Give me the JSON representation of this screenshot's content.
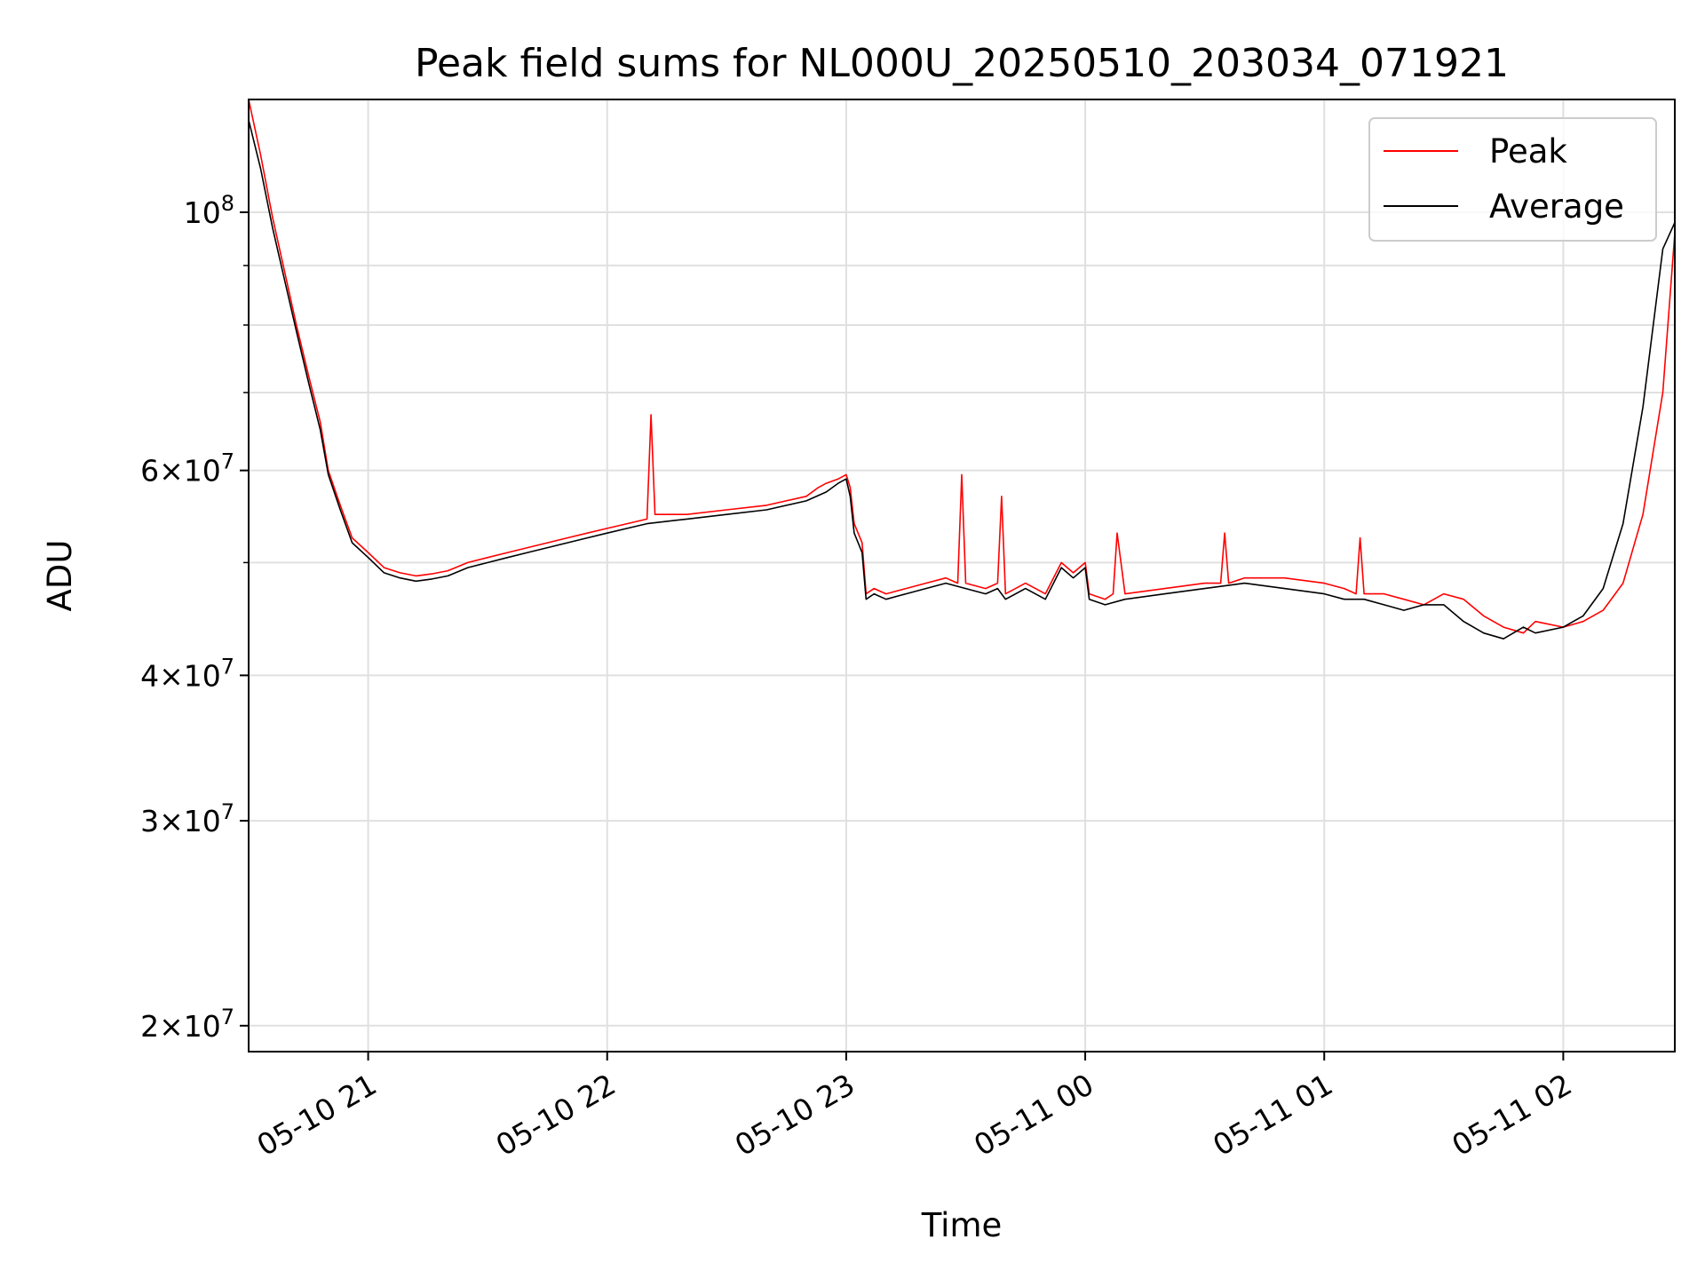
{
  "chart_data": {
    "type": "line",
    "title": "Peak field sums for NL000U_20250510_203034_071921",
    "xlabel": "Time",
    "ylabel": "ADU",
    "yscale": "log",
    "xlim": [
      "2025-05-10 20:30",
      "2025-05-11 02:28"
    ],
    "ylim": [
      19000000,
      125000000
    ],
    "grid": true,
    "legend_position": "top-right",
    "x_ticks": [
      "05-10 21",
      "05-10 22",
      "05-10 23",
      "05-11 00",
      "05-11 01",
      "05-11 02"
    ],
    "y_ticks": [
      {
        "value": 20000000,
        "mantissa": "2",
        "exponent": "7"
      },
      {
        "value": 30000000,
        "mantissa": "3",
        "exponent": "7"
      },
      {
        "value": 40000000,
        "mantissa": "4",
        "exponent": "7"
      },
      {
        "value": 60000000,
        "mantissa": "6",
        "exponent": "7"
      },
      {
        "value": 100000000,
        "mantissa": "",
        "exponent": "8"
      }
    ],
    "y_minor_ticks": [
      50000000,
      70000000,
      80000000,
      90000000
    ],
    "series": [
      {
        "name": "Peak",
        "color": "#ff0000",
        "x": [
          "2025-05-10 20:30",
          "2025-05-10 20:33",
          "2025-05-10 20:36",
          "2025-05-10 20:39",
          "2025-05-10 20:42",
          "2025-05-10 20:45",
          "2025-05-10 20:48",
          "2025-05-10 20:50",
          "2025-05-10 20:53",
          "2025-05-10 20:56",
          "2025-05-10 21:00",
          "2025-05-10 21:04",
          "2025-05-10 21:08",
          "2025-05-10 21:12",
          "2025-05-10 21:16",
          "2025-05-10 21:20",
          "2025-05-10 21:25",
          "2025-05-10 21:30",
          "2025-05-10 21:35",
          "2025-05-10 21:40",
          "2025-05-10 21:45",
          "2025-05-10 21:50",
          "2025-05-10 21:55",
          "2025-05-10 22:00",
          "2025-05-10 22:05",
          "2025-05-10 22:10",
          "2025-05-10 22:11",
          "2025-05-10 22:12",
          "2025-05-10 22:20",
          "2025-05-10 22:30",
          "2025-05-10 22:40",
          "2025-05-10 22:50",
          "2025-05-10 22:53",
          "2025-05-10 22:55",
          "2025-05-10 22:58",
          "2025-05-10 23:00",
          "2025-05-10 23:01",
          "2025-05-10 23:02",
          "2025-05-10 23:04",
          "2025-05-10 23:05",
          "2025-05-10 23:07",
          "2025-05-10 23:10",
          "2025-05-10 23:15",
          "2025-05-10 23:20",
          "2025-05-10 23:25",
          "2025-05-10 23:28",
          "2025-05-10 23:29",
          "2025-05-10 23:30",
          "2025-05-10 23:35",
          "2025-05-10 23:38",
          "2025-05-10 23:39",
          "2025-05-10 23:40",
          "2025-05-10 23:45",
          "2025-05-10 23:50",
          "2025-05-10 23:54",
          "2025-05-10 23:57",
          "2025-05-11 00:00",
          "2025-05-11 00:01",
          "2025-05-11 00:05",
          "2025-05-11 00:07",
          "2025-05-11 00:08",
          "2025-05-11 00:10",
          "2025-05-11 00:20",
          "2025-05-11 00:30",
          "2025-05-11 00:34",
          "2025-05-11 00:35",
          "2025-05-11 00:36",
          "2025-05-11 00:40",
          "2025-05-11 00:50",
          "2025-05-11 01:00",
          "2025-05-11 01:05",
          "2025-05-11 01:08",
          "2025-05-11 01:09",
          "2025-05-11 01:10",
          "2025-05-11 01:15",
          "2025-05-11 01:20",
          "2025-05-11 01:25",
          "2025-05-11 01:30",
          "2025-05-11 01:35",
          "2025-05-11 01:40",
          "2025-05-11 01:45",
          "2025-05-11 01:50",
          "2025-05-11 01:53",
          "2025-05-11 02:00",
          "2025-05-11 02:05",
          "2025-05-11 02:10",
          "2025-05-11 02:15",
          "2025-05-11 02:20",
          "2025-05-11 02:25",
          "2025-05-11 02:28"
        ],
        "values": [
          125000000,
          112000000,
          99000000,
          89000000,
          80000000,
          72500000,
          66000000,
          60000000,
          56000000,
          52500000,
          51000000,
          49500000,
          49000000,
          48700000,
          48900000,
          49200000,
          50000000,
          50500000,
          51000000,
          51500000,
          52000000,
          52500000,
          53000000,
          53500000,
          54000000,
          54500000,
          67000000,
          55000000,
          55000000,
          55500000,
          56000000,
          57000000,
          58000000,
          58500000,
          59000000,
          59500000,
          58000000,
          54000000,
          52000000,
          47000000,
          47500000,
          47000000,
          47500000,
          48000000,
          48500000,
          48000000,
          59500000,
          48000000,
          47500000,
          48000000,
          57000000,
          47000000,
          48000000,
          47000000,
          50000000,
          49000000,
          50000000,
          47000000,
          46500000,
          47000000,
          53000000,
          47000000,
          47500000,
          48000000,
          48000000,
          53000000,
          48000000,
          48500000,
          48500000,
          48000000,
          47500000,
          47000000,
          52500000,
          47000000,
          47000000,
          46500000,
          46000000,
          47000000,
          46500000,
          45000000,
          44000000,
          43500000,
          44500000,
          44000000,
          44500000,
          45500000,
          48000000,
          55000000,
          70000000,
          96000000
        ]
      },
      {
        "name": "Average",
        "color": "#000000",
        "x": [
          "2025-05-10 20:30",
          "2025-05-10 20:33",
          "2025-05-10 20:36",
          "2025-05-10 20:39",
          "2025-05-10 20:42",
          "2025-05-10 20:45",
          "2025-05-10 20:48",
          "2025-05-10 20:50",
          "2025-05-10 20:53",
          "2025-05-10 20:56",
          "2025-05-10 21:00",
          "2025-05-10 21:04",
          "2025-05-10 21:08",
          "2025-05-10 21:12",
          "2025-05-10 21:16",
          "2025-05-10 21:20",
          "2025-05-10 21:25",
          "2025-05-10 21:30",
          "2025-05-10 21:35",
          "2025-05-10 21:40",
          "2025-05-10 21:45",
          "2025-05-10 21:50",
          "2025-05-10 21:55",
          "2025-05-10 22:00",
          "2025-05-10 22:05",
          "2025-05-10 22:10",
          "2025-05-10 22:20",
          "2025-05-10 22:30",
          "2025-05-10 22:40",
          "2025-05-10 22:50",
          "2025-05-10 22:55",
          "2025-05-10 22:58",
          "2025-05-10 23:00",
          "2025-05-10 23:01",
          "2025-05-10 23:02",
          "2025-05-10 23:04",
          "2025-05-10 23:05",
          "2025-05-10 23:07",
          "2025-05-10 23:10",
          "2025-05-10 23:15",
          "2025-05-10 23:20",
          "2025-05-10 23:25",
          "2025-05-10 23:30",
          "2025-05-10 23:35",
          "2025-05-10 23:38",
          "2025-05-10 23:40",
          "2025-05-10 23:45",
          "2025-05-10 23:50",
          "2025-05-10 23:54",
          "2025-05-10 23:57",
          "2025-05-11 00:00",
          "2025-05-11 00:01",
          "2025-05-11 00:05",
          "2025-05-11 00:10",
          "2025-05-11 00:20",
          "2025-05-11 00:30",
          "2025-05-11 00:40",
          "2025-05-11 00:50",
          "2025-05-11 01:00",
          "2025-05-11 01:05",
          "2025-05-11 01:10",
          "2025-05-11 01:15",
          "2025-05-11 01:20",
          "2025-05-11 01:25",
          "2025-05-11 01:30",
          "2025-05-11 01:35",
          "2025-05-11 01:40",
          "2025-05-11 01:45",
          "2025-05-11 01:50",
          "2025-05-11 01:53",
          "2025-05-11 02:00",
          "2025-05-11 02:05",
          "2025-05-11 02:10",
          "2025-05-11 02:15",
          "2025-05-11 02:20",
          "2025-05-11 02:25",
          "2025-05-11 02:28"
        ],
        "values": [
          120000000,
          109000000,
          97000000,
          87500000,
          79000000,
          71500000,
          65000000,
          59500000,
          55500000,
          52000000,
          50500000,
          49000000,
          48500000,
          48200000,
          48400000,
          48700000,
          49500000,
          50000000,
          50500000,
          51000000,
          51500000,
          52000000,
          52500000,
          53000000,
          53500000,
          54000000,
          54500000,
          55000000,
          55500000,
          56500000,
          57500000,
          58500000,
          59000000,
          57000000,
          53000000,
          51000000,
          46500000,
          47000000,
          46500000,
          47000000,
          47500000,
          48000000,
          47500000,
          47000000,
          47500000,
          46500000,
          47500000,
          46500000,
          49500000,
          48500000,
          49500000,
          46500000,
          46000000,
          46500000,
          47000000,
          47500000,
          48000000,
          47500000,
          47000000,
          46500000,
          46500000,
          46000000,
          45500000,
          46000000,
          46000000,
          44500000,
          43500000,
          43000000,
          44000000,
          43500000,
          44000000,
          45000000,
          47500000,
          54000000,
          68000000,
          93000000,
          98000000
        ]
      }
    ]
  }
}
